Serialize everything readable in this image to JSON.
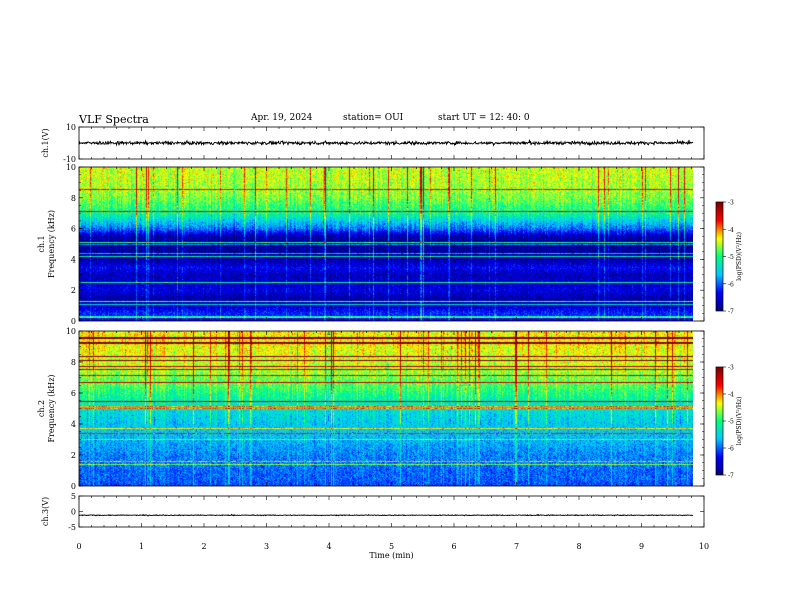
{
  "header": {
    "title": "VLF Spectra",
    "date": "Apr. 19, 2024",
    "station": "station= OUI",
    "start_ut": "start  UT =   12: 40: 0"
  },
  "colors": {
    "colormap": [
      "#00007f",
      "#0000ff",
      "#00c8ff",
      "#00ff80",
      "#ffff00",
      "#ff0000",
      "#7f0000"
    ],
    "trace": "#000000"
  },
  "chart_data": [
    {
      "type": "line",
      "panel": "ch1-waveform",
      "ylabel": "ch.1(V)",
      "ylim": [
        -10,
        10
      ],
      "y_ticks": [
        "10",
        "-10"
      ],
      "x_unit": "min",
      "xlim": [
        0,
        10
      ],
      "data_end_x": 9.83,
      "description_values": {
        "center": 0,
        "amplitude_approx": 1.8
      }
    },
    {
      "type": "heatmap",
      "panel": "ch1-spectrogram",
      "ylabel": "ch.1\nFrequency (kHz)",
      "ylim": [
        0,
        10
      ],
      "y_ticks": [
        "0",
        "2",
        "4",
        "6",
        "8",
        "10"
      ],
      "xlim": [
        0,
        9.83
      ],
      "colorbar": {
        "label": "log(PSD)(V²/Hz)",
        "range": [
          -7,
          -3
        ],
        "ticks": [
          "-3",
          "-4",
          "-5",
          "-6",
          "-7"
        ]
      },
      "profile_freq_khz": [
        0,
        0.5,
        1,
        1.5,
        2,
        2.5,
        3,
        3.5,
        4,
        4.5,
        5,
        5.5,
        6,
        6.5,
        7,
        7.5,
        8,
        8.5,
        9,
        9.5,
        10
      ],
      "profile_logpsd": [
        -6.6,
        -6.2,
        -6.6,
        -6.8,
        -6.5,
        -6.6,
        -6.7,
        -6.4,
        -6.8,
        -6.9,
        -6.9,
        -6.8,
        -6.0,
        -5.6,
        -5.1,
        -4.9,
        -4.7,
        -4.6,
        -4.55,
        -4.5,
        -4.5
      ]
    },
    {
      "type": "heatmap",
      "panel": "ch2-spectrogram",
      "ylabel": "ch.2\nFrequency (kHz)",
      "ylim": [
        0,
        10
      ],
      "y_ticks": [
        "0",
        "2",
        "4",
        "6",
        "8",
        "10"
      ],
      "xlim": [
        0,
        9.83
      ],
      "colorbar": {
        "label": "log(PSD)(V²/Hz)",
        "range": [
          -7,
          -3
        ],
        "ticks": [
          "-3",
          "-4",
          "-5",
          "-6",
          "-7"
        ]
      },
      "profile_freq_khz": [
        0,
        0.5,
        1,
        1.5,
        2,
        2.5,
        3,
        3.5,
        4,
        4.5,
        5,
        5.5,
        6,
        6.5,
        7,
        7.5,
        8,
        8.5,
        9,
        9.5,
        10
      ],
      "profile_logpsd": [
        -6.1,
        -6.0,
        -6.0,
        -5.9,
        -5.9,
        -5.8,
        -5.7,
        -5.6,
        -5.6,
        -5.5,
        -5.4,
        -5.2,
        -5.0,
        -4.8,
        -4.7,
        -4.55,
        -4.45,
        -4.4,
        -4.35,
        -4.3,
        -4.3
      ]
    },
    {
      "type": "line",
      "panel": "ch3-waveform",
      "ylabel": "ch.3(V)",
      "ylim": [
        -5,
        5
      ],
      "y_ticks": [
        "5",
        "0",
        "-5"
      ],
      "xlim": [
        0,
        10
      ],
      "data_end_x": 9.83,
      "description_values": {
        "center": -1.2,
        "amplitude_approx": 0.25
      }
    }
  ],
  "x_axis": {
    "label": "Time  (min)",
    "range": [
      0,
      10
    ],
    "ticks": [
      "0",
      "1",
      "2",
      "3",
      "4",
      "5",
      "6",
      "7",
      "8",
      "9",
      "10"
    ]
  }
}
